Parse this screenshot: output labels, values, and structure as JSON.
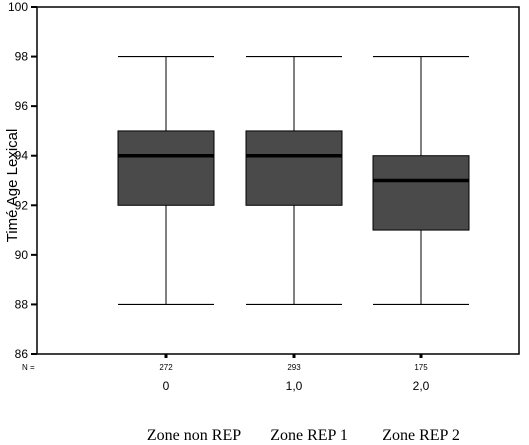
{
  "chart_data": {
    "type": "box",
    "ylabel": "Timé Age Lexical",
    "ylim": [
      86,
      100
    ],
    "yticks": [
      86,
      88,
      90,
      92,
      94,
      96,
      98,
      100
    ],
    "n_prefix": "N =",
    "grid": false,
    "box_color": "#4a4a4a",
    "categories": [
      "0",
      "1,0",
      "2,0"
    ],
    "group_labels": [
      "Zone non REP",
      "Zone REP 1",
      "Zone REP 2"
    ],
    "n": [
      "272",
      "293",
      "175"
    ],
    "boxes": [
      {
        "whisker_low": 88,
        "q1": 92,
        "median": 94,
        "q3": 95,
        "whisker_high": 98
      },
      {
        "whisker_low": 88,
        "q1": 92,
        "median": 94,
        "q3": 95,
        "whisker_high": 98
      },
      {
        "whisker_low": 88,
        "q1": 91,
        "median": 93,
        "q3": 94,
        "whisker_high": 98
      }
    ]
  }
}
